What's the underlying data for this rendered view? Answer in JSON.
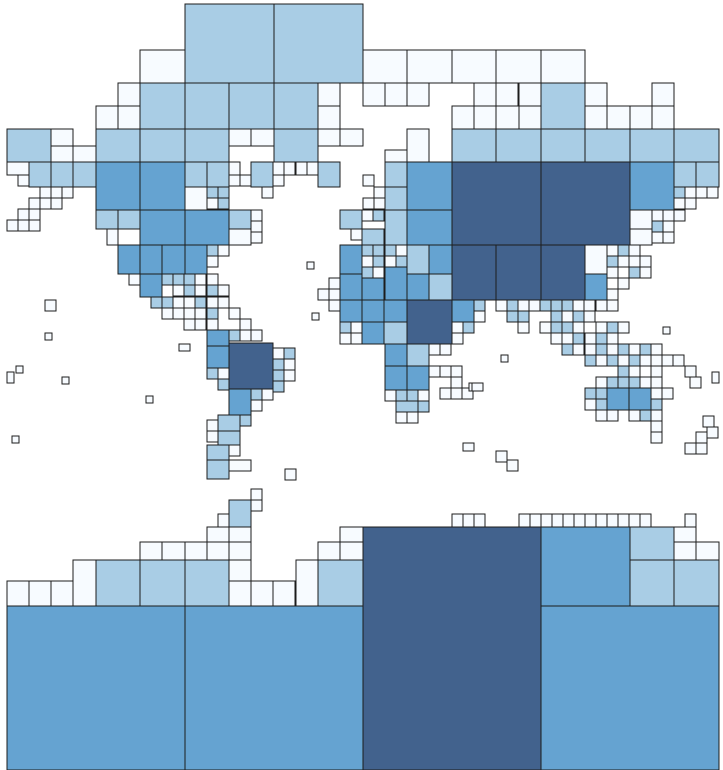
{
  "map": {
    "style": "quadtree-grid-world-map",
    "palette": {
      "level_0": "#f7fbff",
      "level_1": "#a9cde5",
      "level_2": "#65a3d1",
      "level_3": "#42628d",
      "stroke": "#1c1c1c",
      "background": "#ffffff"
    },
    "legend": null
  }
}
